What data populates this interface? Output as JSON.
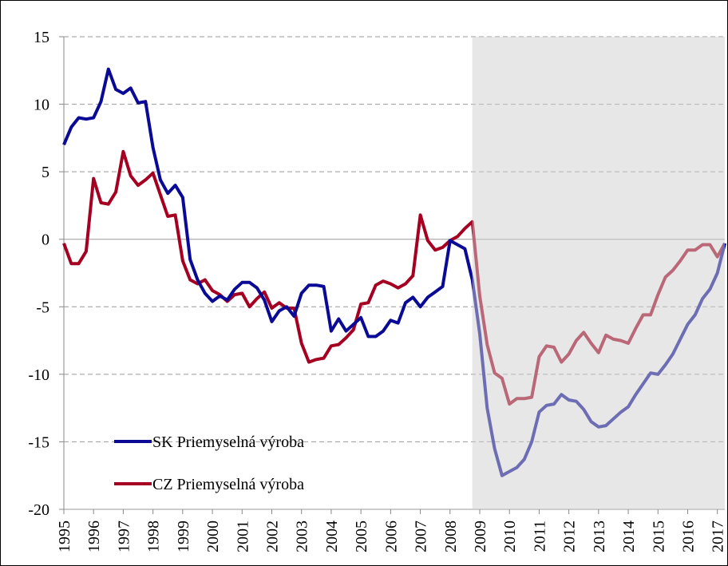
{
  "chart_data": {
    "type": "line",
    "x": [
      1995,
      1995.25,
      1995.5,
      1995.75,
      1996,
      1996.25,
      1996.5,
      1996.75,
      1997,
      1997.25,
      1997.5,
      1997.75,
      1998,
      1998.25,
      1998.5,
      1998.75,
      1999,
      1999.25,
      1999.5,
      1999.75,
      2000,
      2000.25,
      2000.5,
      2000.75,
      2001,
      2001.25,
      2001.5,
      2001.75,
      2002,
      2002.25,
      2002.5,
      2002.75,
      2003,
      2003.25,
      2003.5,
      2003.75,
      2004,
      2004.25,
      2004.5,
      2004.75,
      2005,
      2005.25,
      2005.5,
      2005.75,
      2006,
      2006.25,
      2006.5,
      2006.75,
      2007,
      2007.25,
      2007.5,
      2007.75,
      2008,
      2008.25,
      2008.5,
      2008.75,
      2009,
      2009.25,
      2009.5,
      2009.75,
      2010,
      2010.25,
      2010.5,
      2010.75,
      2011,
      2011.25,
      2011.5,
      2011.75,
      2012,
      2012.25,
      2012.5,
      2012.75,
      2013,
      2013.25,
      2013.5,
      2013.75,
      2014,
      2014.25,
      2014.5,
      2014.75,
      2015,
      2015.25,
      2015.5,
      2015.75,
      2016,
      2016.25,
      2016.5,
      2016.75,
      2017,
      2017.25
    ],
    "series": [
      {
        "name": "SK Priemyselná výroba",
        "color": "#0a0a96",
        "values": [
          7.0,
          8.3,
          9.0,
          8.9,
          9.0,
          10.2,
          12.6,
          11.1,
          10.8,
          11.2,
          10.1,
          10.2,
          6.8,
          4.4,
          3.4,
          4.0,
          3.1,
          -1.5,
          -3.0,
          -4.0,
          -4.6,
          -4.2,
          -4.5,
          -3.7,
          -3.2,
          -3.2,
          -3.6,
          -4.5,
          -6.1,
          -5.3,
          -5.0,
          -5.7,
          -4.0,
          -3.4,
          -3.4,
          -3.5,
          -6.8,
          -5.9,
          -6.8,
          -6.3,
          -5.8,
          -7.2,
          -7.2,
          -6.8,
          -6.0,
          -6.2,
          -4.7,
          -4.3,
          -5.0,
          -4.3,
          -3.9,
          -3.5,
          -0.1,
          -0.4,
          -0.7,
          -3.0,
          -7.0,
          -12.5,
          -15.5,
          -17.5,
          -17.2,
          -16.9,
          -16.3,
          -15.0,
          -12.8,
          -12.3,
          -12.2,
          -11.5,
          -11.9,
          -12.0,
          -12.6,
          -13.5,
          -13.9,
          -13.8,
          -13.3,
          -12.8,
          -12.4,
          -11.5,
          -10.7,
          -9.9,
          -10.0,
          -9.3,
          -8.5,
          -7.4,
          -6.3,
          -5.6,
          -4.4,
          -3.7,
          -2.5,
          -0.3
        ]
      },
      {
        "name": "CZ Priemyselná výroba",
        "color": "#a50021",
        "values": [
          -0.3,
          -1.8,
          -1.8,
          -0.9,
          4.5,
          2.7,
          2.6,
          3.5,
          6.5,
          4.7,
          4.0,
          4.4,
          4.9,
          3.3,
          1.7,
          1.8,
          -1.6,
          -3.0,
          -3.3,
          -3.0,
          -3.8,
          -4.1,
          -4.6,
          -4.1,
          -4.0,
          -5.0,
          -4.4,
          -3.9,
          -5.1,
          -4.7,
          -5.1,
          -5.1,
          -7.7,
          -9.1,
          -8.9,
          -8.8,
          -7.9,
          -7.8,
          -7.3,
          -6.7,
          -4.8,
          -4.7,
          -3.4,
          -3.1,
          -3.3,
          -3.6,
          -3.3,
          -2.7,
          1.8,
          -0.1,
          -0.8,
          -0.6,
          -0.1,
          0.2,
          0.8,
          1.3,
          -4.2,
          -7.8,
          -9.9,
          -10.3,
          -12.2,
          -11.8,
          -11.8,
          -11.7,
          -8.7,
          -7.9,
          -8.0,
          -9.1,
          -8.5,
          -7.5,
          -6.9,
          -7.7,
          -8.4,
          -7.1,
          -7.4,
          -7.5,
          -7.7,
          -6.6,
          -5.6,
          -5.6,
          -4.1,
          -2.8,
          -2.3,
          -1.6,
          -0.8,
          -0.8,
          -0.4,
          -0.4,
          -1.3,
          -0.3
        ]
      }
    ],
    "xlim": [
      1995,
      2017.25
    ],
    "xticks": [
      1995,
      1996,
      1997,
      1998,
      1999,
      2000,
      2001,
      2002,
      2003,
      2004,
      2005,
      2006,
      2007,
      2008,
      2009,
      2010,
      2011,
      2012,
      2013,
      2014,
      2015,
      2016,
      2017
    ],
    "ylim": [
      -20,
      15
    ],
    "yticks": [
      -20,
      -15,
      -10,
      -5,
      0,
      5,
      10,
      15
    ],
    "grid": true,
    "legend": "lower left",
    "shaded_xrange": [
      2008.75,
      2017.25
    ]
  }
}
